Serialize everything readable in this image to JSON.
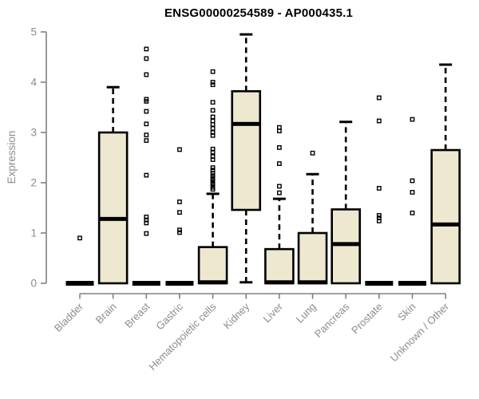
{
  "chart_data": {
    "type": "boxplot",
    "title": "ENSG00000254589 - AP000435.1",
    "ylabel": "Expression",
    "xlabel": "",
    "ylim": [
      0,
      5
    ],
    "yticks": [
      0,
      1,
      2,
      3,
      4,
      5
    ],
    "grid": false,
    "x_label_rotation": 45,
    "categories": [
      "Bladder",
      "Brain",
      "Breast",
      "Gastric",
      "Hematopoietic cells",
      "Kidney",
      "Liver",
      "Lung",
      "Pancreas",
      "Prostate",
      "Skin",
      "Unknown / Other"
    ],
    "series": [
      {
        "category": "Bladder",
        "min": 0,
        "q1": 0,
        "median": 0,
        "q3": 0,
        "max": 0,
        "outliers": [
          0.9
        ]
      },
      {
        "category": "Brain",
        "min": 0,
        "q1": 0,
        "median": 1.28,
        "q3": 3.0,
        "max": 3.9,
        "outliers": []
      },
      {
        "category": "Breast",
        "min": 0,
        "q1": 0,
        "median": 0,
        "q3": 0,
        "max": 0,
        "outliers": [
          0.99,
          1.2,
          1.26,
          1.32,
          2.15,
          2.84,
          2.95,
          3.17,
          3.42,
          3.62,
          3.66,
          4.15,
          4.47,
          4.66
        ]
      },
      {
        "category": "Gastric",
        "min": 0,
        "q1": 0,
        "median": 0,
        "q3": 0,
        "max": 0,
        "outliers": [
          1.01,
          1.06,
          1.41,
          1.62,
          2.66
        ]
      },
      {
        "category": "Hematopoietic cells",
        "min": 0,
        "q1": 0,
        "median": 0.02,
        "q3": 0.72,
        "max": 1.78,
        "outliers": [
          1.87,
          1.91,
          1.96,
          2.0,
          2.05,
          2.09,
          2.14,
          2.19,
          2.25,
          2.3,
          2.46,
          2.52,
          2.61,
          2.67,
          2.94,
          3.0,
          3.08,
          3.16,
          3.23,
          3.31,
          3.44,
          3.6,
          3.95,
          4.0,
          4.21
        ]
      },
      {
        "category": "Kidney",
        "min": 0.02,
        "q1": 1.46,
        "median": 3.17,
        "q3": 3.82,
        "max": 4.95,
        "outliers": []
      },
      {
        "category": "Liver",
        "min": 0,
        "q1": 0,
        "median": 0.02,
        "q3": 0.68,
        "max": 1.68,
        "outliers": [
          1.8,
          1.93,
          2.38,
          2.7,
          3.03,
          3.1
        ]
      },
      {
        "category": "Lung",
        "min": 0,
        "q1": 0,
        "median": 0.02,
        "q3": 1.0,
        "max": 2.17,
        "outliers": [
          2.59
        ]
      },
      {
        "category": "Pancreas",
        "min": 0,
        "q1": 0,
        "median": 0.78,
        "q3": 1.47,
        "max": 3.21,
        "outliers": []
      },
      {
        "category": "Prostate",
        "min": 0,
        "q1": 0,
        "median": 0,
        "q3": 0,
        "max": 0,
        "outliers": [
          1.24,
          1.3,
          1.35,
          1.89,
          3.23,
          3.69
        ]
      },
      {
        "category": "Skin",
        "min": 0,
        "q1": 0,
        "median": 0,
        "q3": 0,
        "max": 0,
        "outliers": [
          1.4,
          1.81,
          2.04,
          3.26
        ]
      },
      {
        "category": "Unknown / Other",
        "min": 0,
        "q1": 0,
        "median": 1.17,
        "q3": 2.65,
        "max": 4.35,
        "outliers": []
      }
    ],
    "colors": {
      "box_fill": "#EDE8CF",
      "box_stroke": "#000000",
      "median": "#000000",
      "whisker": "#000000",
      "axis": "#808080",
      "tick_label": "#8C8C8C",
      "title": "#000000"
    }
  }
}
